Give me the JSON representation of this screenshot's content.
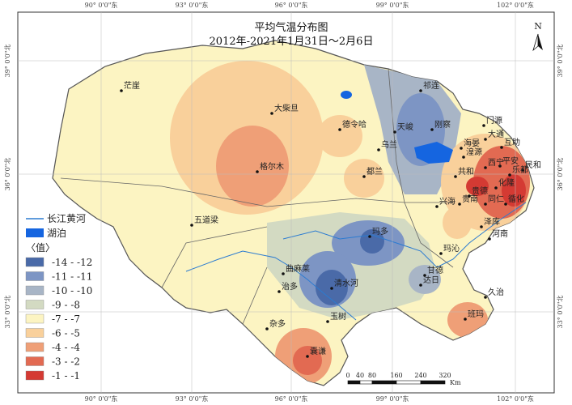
{
  "title": [
    "平均气温分布图",
    "2012年-2021年1月31日～2月6日"
  ],
  "north": "N",
  "lon_labels": [
    "90° 0'0\"东",
    "93° 0'0\"东",
    "96° 0'0\"东",
    "99° 0'0\"东",
    "102° 0'0\"东"
  ],
  "lat_labels": [
    "39° 0'0\"北",
    "36° 0'0\"北",
    "33° 0'0\"北"
  ],
  "legend": {
    "river": "长江黄河",
    "lake": "湖泊",
    "heading": "〈值〉",
    "classes": [
      {
        "label": "-14 - -12",
        "color": "#4a6aa8"
      },
      {
        "label": "-11 - -11",
        "color": "#7d95c4"
      },
      {
        "label": "-10 - -10",
        "color": "#a8b5c6"
      },
      {
        "label": "-9 - -8",
        "color": "#d3dac2"
      },
      {
        "label": "-7 - -7",
        "color": "#fcf4c2"
      },
      {
        "label": "-6 - -5",
        "color": "#f9d09b"
      },
      {
        "label": "-4 - -4",
        "color": "#ef9f77"
      },
      {
        "label": "-3 - -2",
        "color": "#e26a52"
      },
      {
        "label": "-1 - -1",
        "color": "#d43a33"
      }
    ]
  },
  "scale": {
    "ticks": [
      "0",
      "40",
      "80",
      "160",
      "240",
      "320"
    ],
    "unit": "Km"
  },
  "stations": [
    "茫崖",
    "大柴旦",
    "德令哈",
    "格尔木",
    "乌兰",
    "都兰",
    "天峻",
    "刚察",
    "祁连",
    "门源",
    "海晏",
    "湟源",
    "大通",
    "互助",
    "平安",
    "民和",
    "乐都",
    "西宁",
    "共和",
    "贵德",
    "化隆",
    "循化",
    "兴海",
    "贵南",
    "同仁",
    "泽库",
    "河南",
    "玛多",
    "五道梁",
    "曲麻莱",
    "治多",
    "清水河",
    "甘德",
    "达日",
    "久治",
    "玛沁",
    "杂多",
    "玉树",
    "囊谦",
    "班玛"
  ]
}
